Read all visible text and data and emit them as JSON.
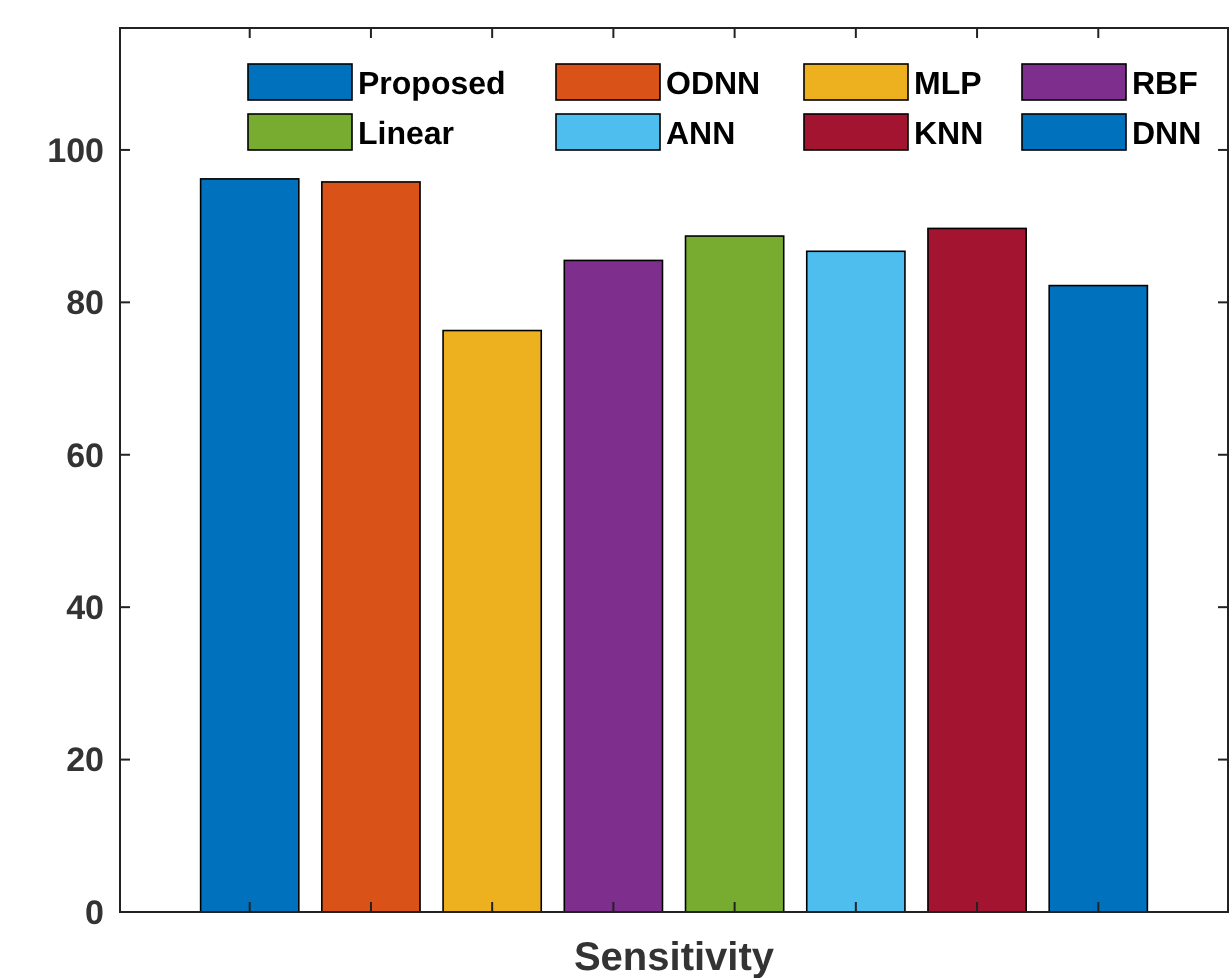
{
  "chart_data": {
    "type": "bar",
    "stacked": true,
    "xlabel": "Sensitivity",
    "categories": [
      null,
      null,
      null,
      null,
      null,
      null,
      null,
      null
    ],
    "ylim": [
      0,
      116
    ],
    "yticks": [
      0,
      20,
      40,
      60,
      80,
      100
    ],
    "legend": "top",
    "series": [
      {
        "name": "Proposed",
        "color": "#0072bd",
        "values": [
          96.2,
          null,
          null,
          null,
          null,
          null,
          null,
          null
        ]
      },
      {
        "name": "ODNN",
        "color": "#d95319",
        "values": [
          null,
          95.8,
          null,
          null,
          null,
          null,
          null,
          null
        ]
      },
      {
        "name": "MLP",
        "color": "#edb120",
        "values": [
          null,
          null,
          76.3,
          null,
          null,
          null,
          null,
          null
        ]
      },
      {
        "name": "RBF",
        "color": "#7e2f8e",
        "values": [
          null,
          null,
          null,
          85.5,
          null,
          null,
          null,
          null
        ]
      },
      {
        "name": "Linear",
        "color": "#77ac30",
        "values": [
          null,
          null,
          null,
          null,
          88.7,
          null,
          null,
          null
        ]
      },
      {
        "name": "ANN",
        "color": "#4dbeee",
        "values": [
          null,
          null,
          null,
          null,
          null,
          86.7,
          null,
          null
        ]
      },
      {
        "name": "KNN",
        "color": "#a2142f",
        "values": [
          null,
          null,
          null,
          null,
          null,
          null,
          89.7,
          null
        ]
      },
      {
        "name": "DNN",
        "color": "#0072bd",
        "values": [
          null,
          null,
          null,
          null,
          null,
          null,
          null,
          82.2
        ]
      }
    ]
  }
}
